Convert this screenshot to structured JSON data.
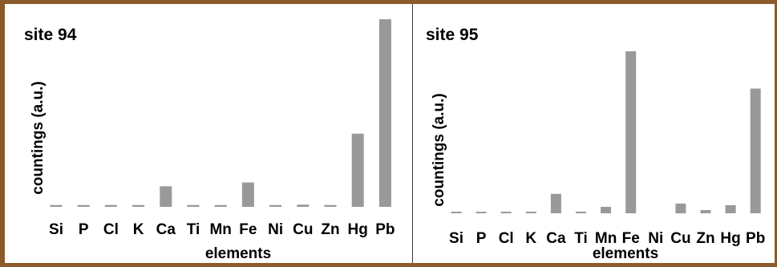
{
  "chart_data": [
    {
      "type": "bar",
      "title": "site 94",
      "xlabel": "elements",
      "ylabel": "countings (a.u.)",
      "categories": [
        "Si",
        "P",
        "Cl",
        "K",
        "Ca",
        "Ti",
        "Mn",
        "Fe",
        "Ni",
        "Cu",
        "Zn",
        "Hg",
        "Pb"
      ],
      "values": [
        1,
        1,
        1,
        1,
        11,
        1,
        1,
        13,
        1,
        1.2,
        1,
        39,
        100
      ],
      "ylim": [
        0,
        100
      ],
      "grid": false,
      "color": "#999999"
    },
    {
      "type": "bar",
      "title": "site 95",
      "xlabel": "elements",
      "ylabel": "countings (a.u.)",
      "categories": [
        "Si",
        "P",
        "Cl",
        "K",
        "Ca",
        "Ti",
        "Mn",
        "Fe",
        "Ni",
        "Cu",
        "Zn",
        "Hg",
        "Pb"
      ],
      "values": [
        1,
        1,
        1,
        1,
        12,
        1,
        4,
        100,
        0,
        6,
        2,
        5,
        77
      ],
      "ylim": [
        0,
        100
      ],
      "grid": false,
      "color": "#999999"
    }
  ]
}
